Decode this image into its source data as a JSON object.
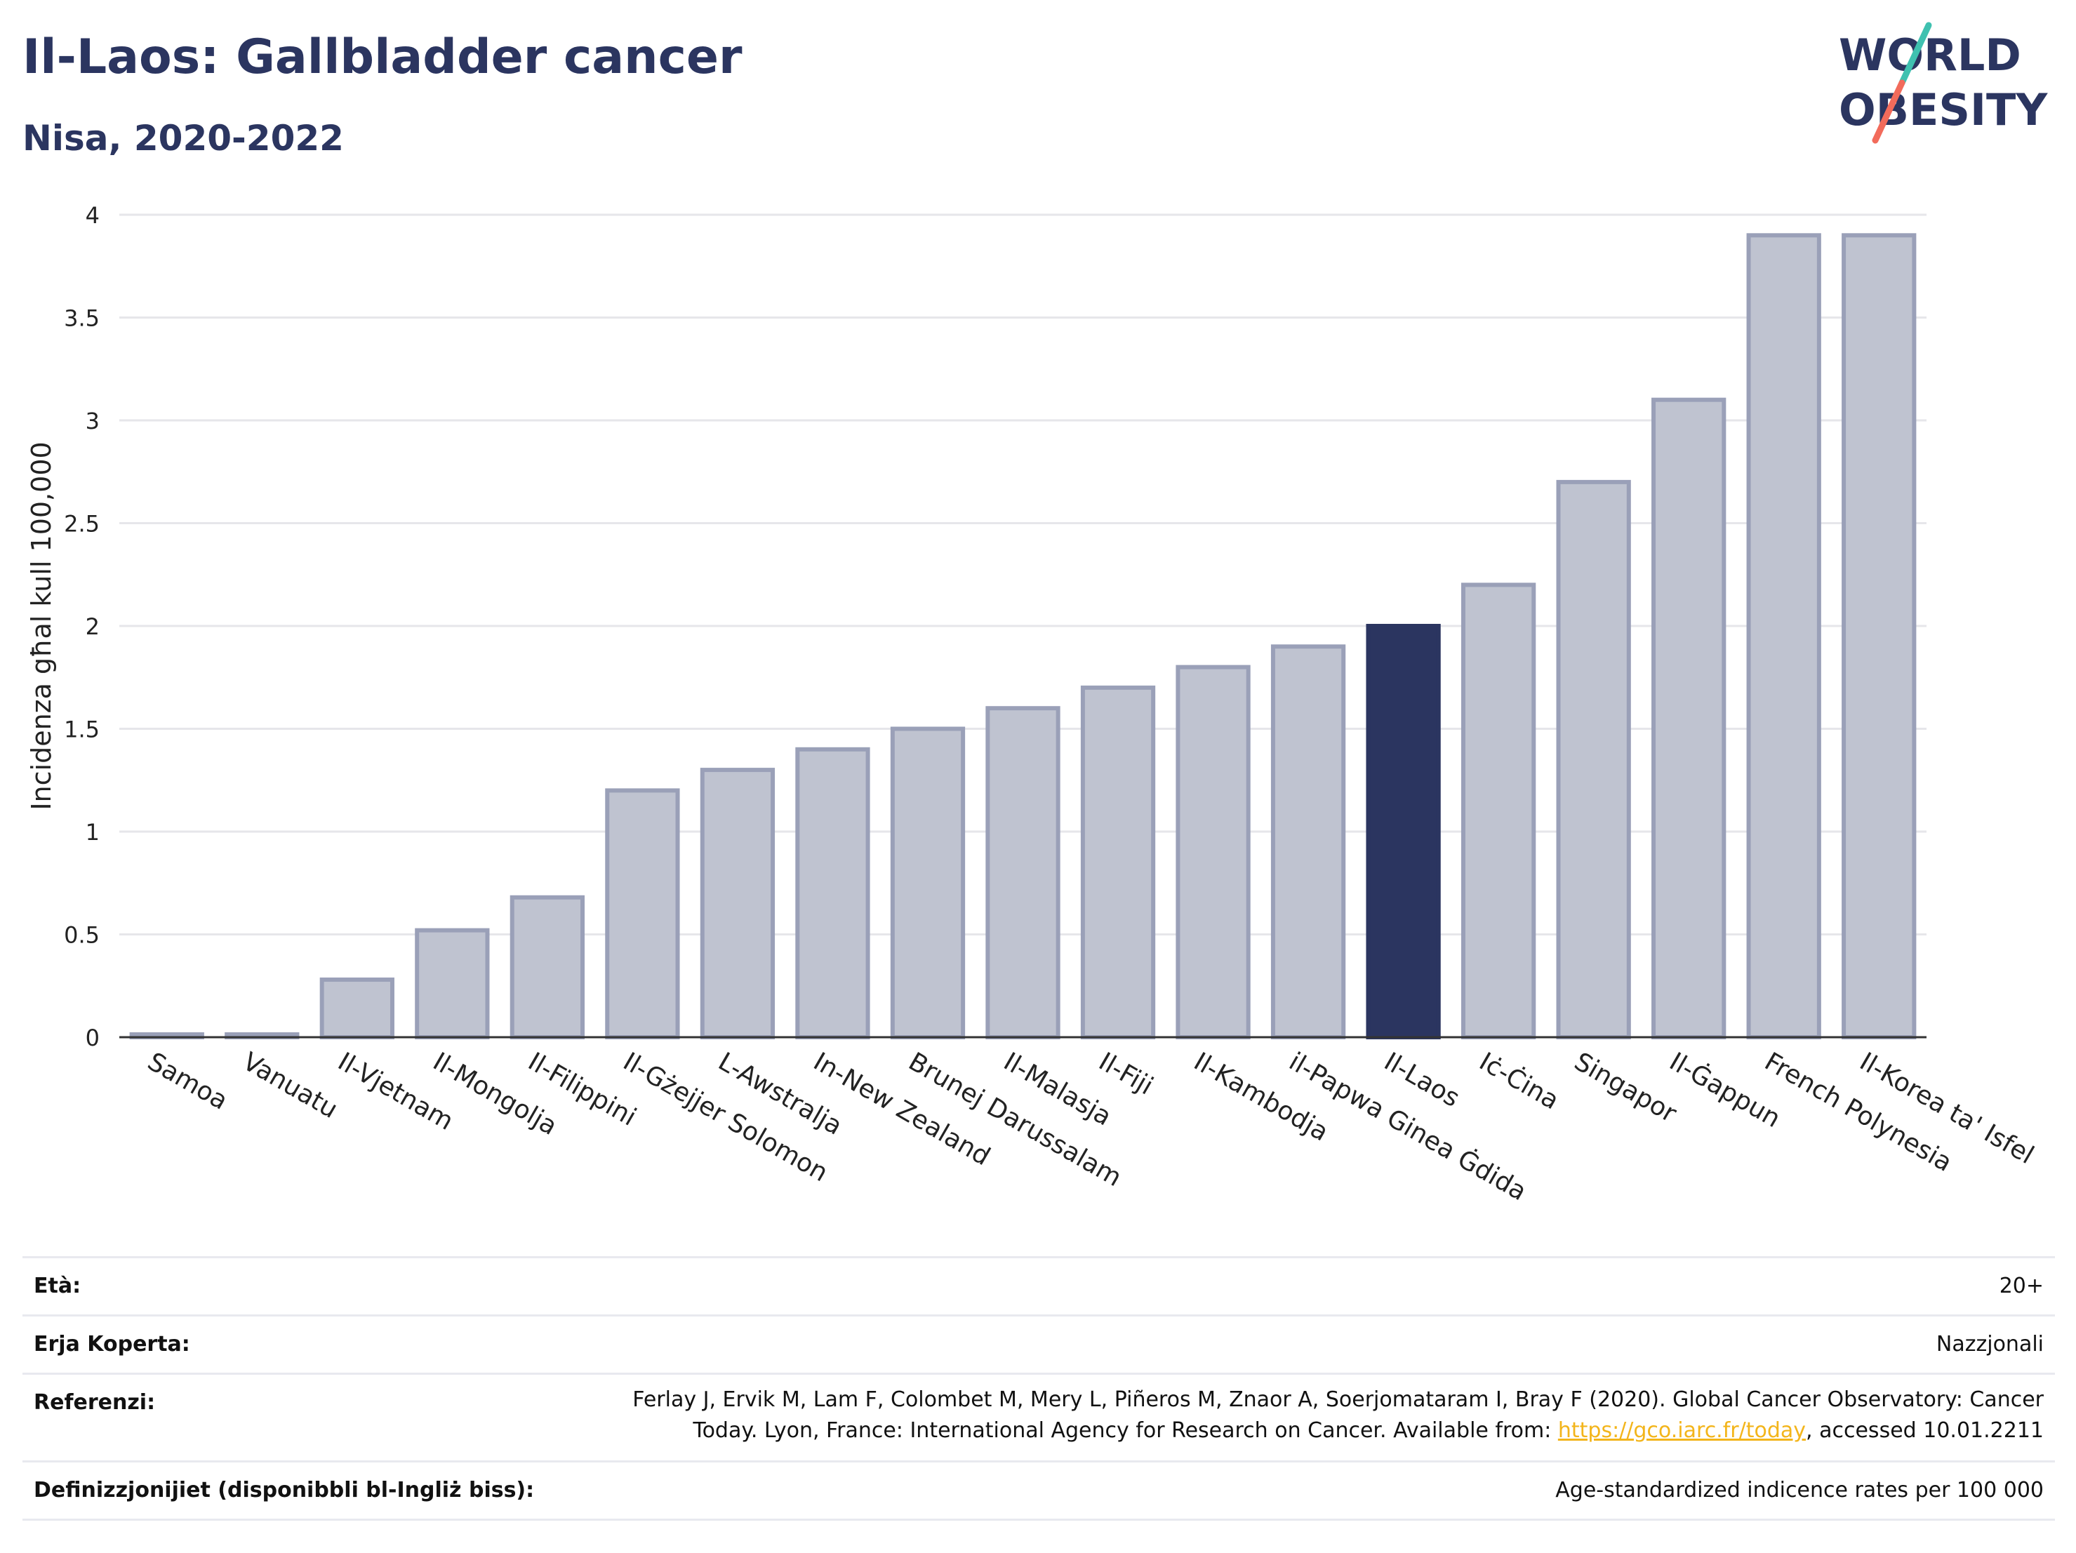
{
  "title": "Il-Laos: Gallbladder cancer",
  "subtitle": "Nisa, 2020-2022",
  "logo": {
    "line1": "WORLD",
    "line2": "OBESITY",
    "colors": {
      "text": "#2b3560",
      "slash_top": "#3fc1b0",
      "slash_bottom": "#f26b5b"
    }
  },
  "chart_data": {
    "type": "bar",
    "ylabel": "Incidenza għal kull 100,000",
    "xlabel": "",
    "ylim": [
      0,
      4
    ],
    "yticks": [
      "0",
      "0.5",
      "1",
      "1.5",
      "2",
      "2.5",
      "3",
      "3.5",
      "4"
    ],
    "grid": true,
    "highlight": "Il-Laos",
    "colors": {
      "bar": "#bfc3d0",
      "bar_border": "#9aa0b8",
      "highlight": "#2b3560",
      "grid": "#e6e6ea",
      "axis": "#333333"
    },
    "categories": [
      "Samoa",
      "Vanuatu",
      "Il-Vjetnam",
      "Il-Mongolja",
      "Il-Filippini",
      "Il-Gżejjer Solomon",
      "L-Awstralja",
      "In-New Zealand",
      "Brunej Darussalam",
      "Il-Malasja",
      "Il-Fiji",
      "Il-Kambodja",
      "il-Papwa Ginea Ġdida",
      "Il-Laos",
      "Iċ-Ċina",
      "Singapor",
      "Il-Ġappun",
      "French Polynesia",
      "Il-Korea ta' Isfel"
    ],
    "values": [
      0.01,
      0.01,
      0.28,
      0.52,
      0.68,
      1.2,
      1.3,
      1.4,
      1.5,
      1.6,
      1.7,
      1.8,
      1.9,
      2.0,
      2.2,
      2.7,
      3.1,
      3.9,
      3.9
    ]
  },
  "info": [
    {
      "label": "Età:",
      "value": "20+"
    },
    {
      "label": "Erja Koperta:",
      "value": "Nazzjonali"
    },
    {
      "label": "Referenzi:",
      "value_line1": "Ferlay J, Ervik M, Lam F, Colombet M, Mery L, Piñeros M, Znaor A, Soerjomataram I, Bray F (2020). Global Cancer Observatory: Cancer",
      "value_line2_pre": "Today. Lyon, France: International Agency for Research on Cancer. Available from: ",
      "link": "https://gco.iarc.fr/today",
      "value_line2_post": ", accessed 10.01.2211"
    },
    {
      "label": "Definizzjonijiet (disponibbli bl-Ingliż biss):",
      "value": "Age-standardized indicence rates per 100 000"
    }
  ]
}
